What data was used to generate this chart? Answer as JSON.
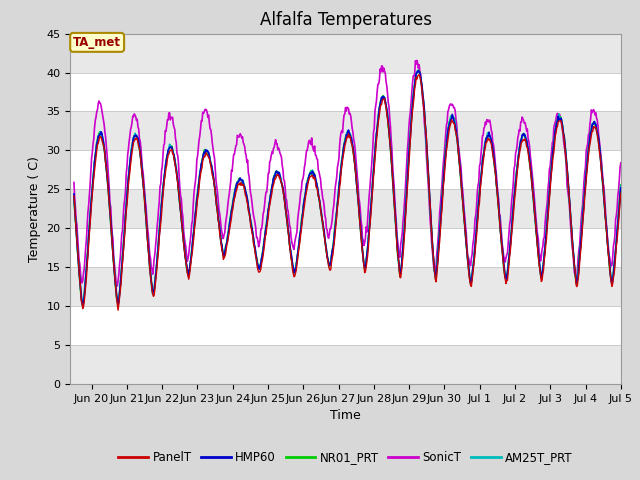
{
  "title": "Alfalfa Temperatures",
  "ylabel": "Temperature ( C)",
  "xlabel": "Time",
  "ylim": [
    0,
    45
  ],
  "yticks": [
    0,
    5,
    10,
    15,
    20,
    25,
    30,
    35,
    40,
    45
  ],
  "background_color": "#d8d8d8",
  "plot_bg_color": "#ffffff",
  "annotation_text": "TA_met",
  "annotation_color": "#990000",
  "annotation_bg": "#ffffcc",
  "annotation_border": "#aa8800",
  "series_colors": {
    "PanelT": "#cc0000",
    "HMP60": "#0000cc",
    "NR01_PRT": "#00cc00",
    "SonicT": "#cc00cc",
    "AM25T_PRT": "#00bbbb"
  },
  "series_linewidths": {
    "PanelT": 1.0,
    "HMP60": 1.2,
    "NR01_PRT": 1.2,
    "SonicT": 1.2,
    "AM25T_PRT": 1.2
  },
  "tick_labels": [
    "Jun 20",
    "Jun 21",
    "Jun 22",
    "Jun 23",
    "Jun 24",
    "Jun 25",
    "Jun 26",
    "Jun 27",
    "Jun 28",
    "Jun 29",
    "Jun 30",
    "Jul 1",
    "Jul 2",
    "Jul 3",
    "Jul 4",
    "Jul 5"
  ],
  "title_fontsize": 12,
  "axis_label_fontsize": 9,
  "tick_fontsize": 8,
  "daily_min_base": [
    10,
    10,
    11,
    13,
    17,
    15,
    14,
    15,
    15,
    14,
    14,
    13,
    13,
    14,
    13,
    13
  ],
  "daily_max_base": [
    33,
    32,
    32,
    30,
    30,
    25,
    28,
    27,
    34,
    38,
    41,
    32,
    32,
    32,
    35,
    33
  ],
  "sonic_extra_max": [
    3,
    4,
    2,
    5,
    5,
    6,
    3,
    4,
    3,
    4,
    0,
    2,
    2,
    2,
    0,
    2
  ],
  "sonic_extra_min": [
    3,
    2,
    3,
    2,
    2,
    3,
    3,
    4,
    3,
    3,
    0,
    2,
    2,
    3,
    0,
    2
  ],
  "n_days": 15.5
}
